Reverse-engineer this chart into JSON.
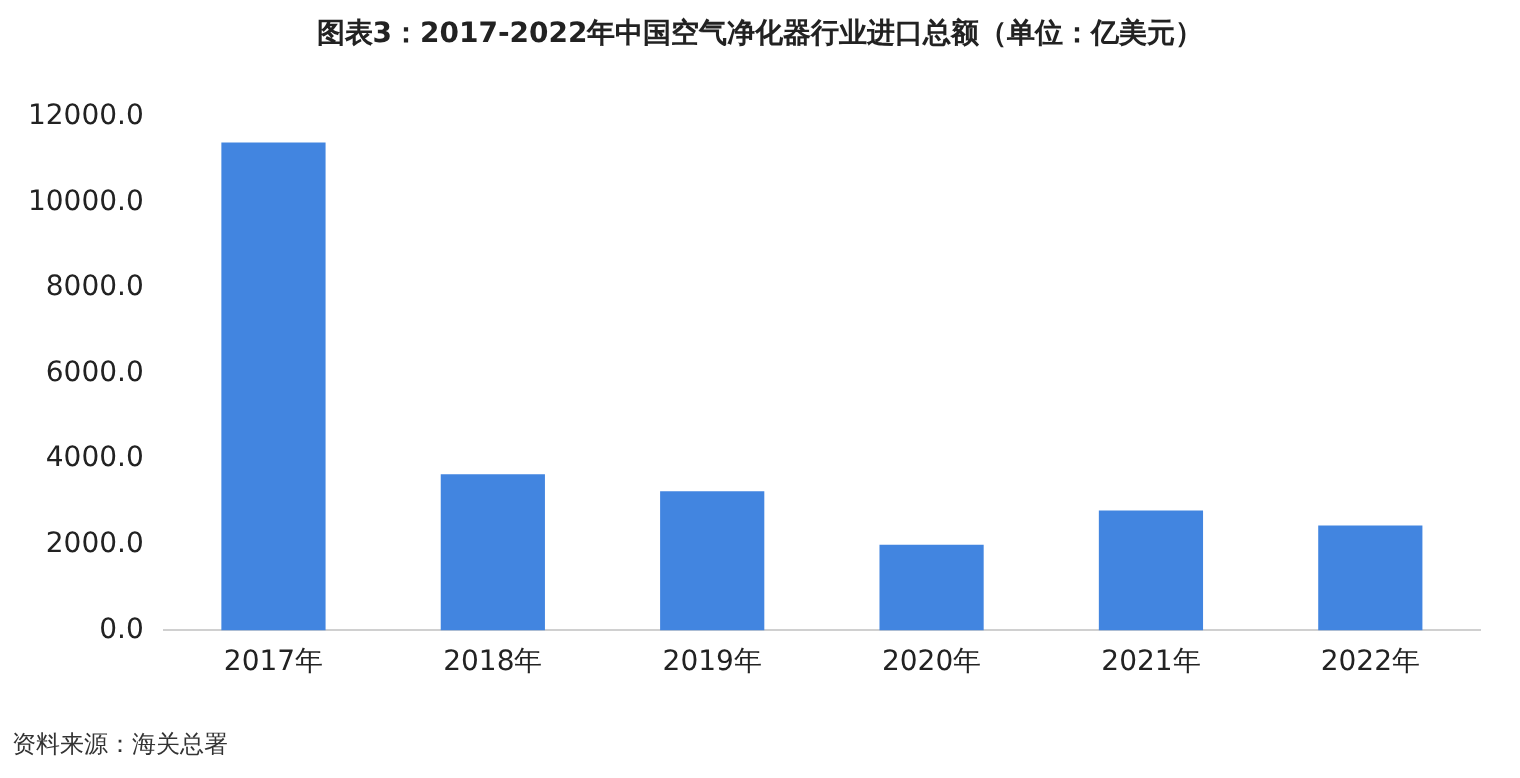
{
  "chart_data": {
    "type": "bar",
    "title": "图表3：2017-2022年中国空气净化器行业进口总额（单位：亿美元）",
    "categories": [
      "2017年",
      "2018年",
      "2019年",
      "2020年",
      "2021年",
      "2022年"
    ],
    "values": [
      11400,
      3650,
      3250,
      2000,
      2800,
      2450
    ],
    "color": "#4285e0",
    "ylim": [
      0,
      12000
    ],
    "yticks": [
      {
        "value": 0,
        "label": "0.0"
      },
      {
        "value": 2000,
        "label": "2000.0"
      },
      {
        "value": 4000,
        "label": "4000.0"
      },
      {
        "value": 6000,
        "label": "6000.0"
      },
      {
        "value": 8000,
        "label": "8000.0"
      },
      {
        "value": 10000,
        "label": "10000.0"
      },
      {
        "value": 12000,
        "label": "12000.0"
      }
    ],
    "grid": false,
    "legend": false,
    "annotations": [
      "资料来源：海关总署"
    ]
  }
}
